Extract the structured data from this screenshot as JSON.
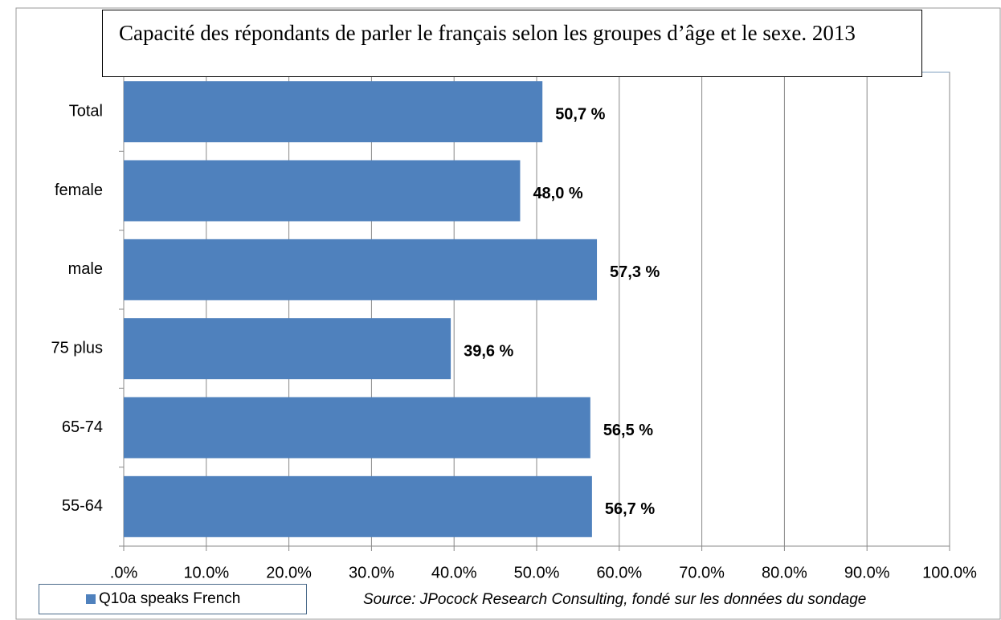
{
  "chart_data": {
    "type": "bar",
    "orientation": "horizontal",
    "title": "Capacité des répondants de parler le français selon les groupes d’âge et le sexe. 2013",
    "categories": [
      "Total",
      "female",
      "male",
      "75 plus",
      "65-74",
      "55-64"
    ],
    "series": [
      {
        "name": "Q10a speaks French",
        "color": "#4f81bd",
        "values": [
          50.7,
          48.0,
          57.3,
          39.6,
          56.5,
          56.7
        ],
        "value_labels": [
          "50,7 %",
          "48,0 %",
          "57,3 %",
          "39,6 %",
          "56,5 %",
          "56,7 %"
        ]
      }
    ],
    "xlim": [
      0,
      100
    ],
    "xticks": [
      {
        "value": 0,
        "label": ".0%"
      },
      {
        "value": 10,
        "label": "10.0%"
      },
      {
        "value": 20,
        "label": "20.0%"
      },
      {
        "value": 30,
        "label": "30.0%"
      },
      {
        "value": 40,
        "label": "40.0%"
      },
      {
        "value": 50,
        "label": "50.0%"
      },
      {
        "value": 60,
        "label": "60.0%"
      },
      {
        "value": 70,
        "label": "70.0%"
      },
      {
        "value": 80,
        "label": "80.0%"
      },
      {
        "value": 90,
        "label": "90.0%"
      },
      {
        "value": 100,
        "label": "100.0%"
      }
    ],
    "grid": true,
    "source": "Source:  JPocock Research Consulting, fondé sur les données du sondage"
  }
}
